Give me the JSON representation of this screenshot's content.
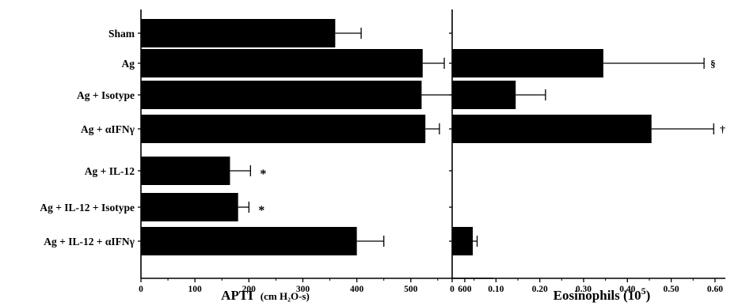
{
  "chart_data": [
    {
      "type": "bar",
      "orientation": "horizontal",
      "categories": [
        "Sham",
        "Ag",
        "Ag + Isotype",
        "Ag + αIFNγ",
        "Ag + IL-12",
        "Ag + IL-12 + Isotype",
        "Ag + IL-12 + αIFNγ"
      ],
      "values": [
        360,
        522,
        520,
        527,
        165,
        180,
        400
      ],
      "errors": [
        48,
        40,
        108,
        26,
        38,
        20,
        50
      ],
      "annotations": [
        "",
        "",
        "",
        "",
        "*",
        "*",
        ""
      ],
      "xlabel": "APTI",
      "xunit": "(cm H₂O-s)",
      "xlim": [
        0,
        650
      ],
      "xticks": [
        0,
        100,
        200,
        300,
        400,
        500,
        600
      ],
      "xtick_labels": [
        "0",
        "100",
        "200",
        "300",
        "400",
        "500",
        "600"
      ],
      "grid": false
    },
    {
      "type": "bar",
      "orientation": "horizontal",
      "categories": [
        "Sham",
        "Ag",
        "Ag + Isotype",
        "Ag + αIFNγ",
        "Ag + IL-12",
        "Ag + IL-12 + Isotype",
        "Ag + IL-12 + αIFNγ"
      ],
      "values": [
        0,
        0.345,
        0.145,
        0.455,
        0,
        0,
        0.047
      ],
      "errors": [
        0,
        0.23,
        0.068,
        0.142,
        0,
        0,
        0.01
      ],
      "annotations": [
        "",
        "§",
        "",
        "†",
        "",
        "",
        ""
      ],
      "xlabel": "Eosinophils (10",
      "xlabel_sup": "5",
      "xlabel_close": ")",
      "xlim": [
        0,
        0.62
      ],
      "xticks": [
        0,
        0.1,
        0.2,
        0.3,
        0.4,
        0.5,
        0.6
      ],
      "xtick_labels": [
        "0",
        "0.10",
        "0.20",
        "0.30",
        "0.40",
        "0.50",
        "0.60"
      ],
      "grid": false
    }
  ]
}
